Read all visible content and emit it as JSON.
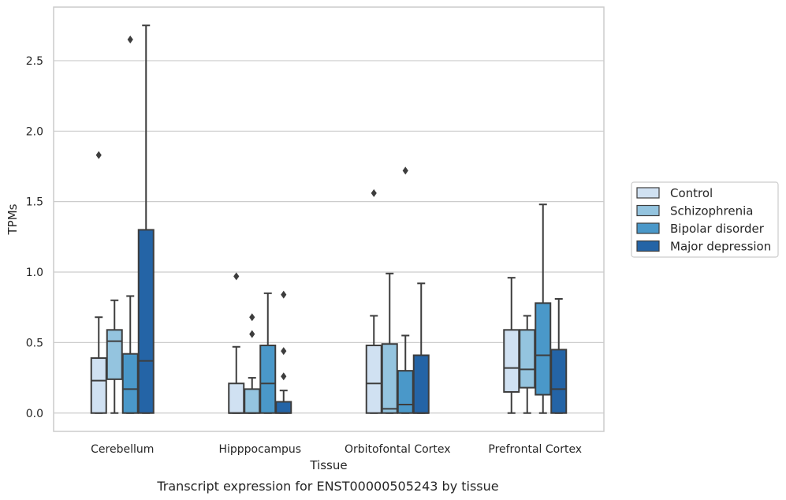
{
  "caption": "Transcript expression for ENST00000505243 by tissue",
  "colors": {
    "Control": "#d0e1f2",
    "Schizophrenia": "#94c4df",
    "Bipolar disorder": "#4a98c9",
    "Major depression": "#2464a6",
    "edge": "#3d3d3d",
    "grid": "#cccccc",
    "frame": "#cccccc"
  },
  "chart_data": {
    "type": "box",
    "title": "",
    "xlabel": "Tissue",
    "ylabel": "TPMs",
    "ylim": [
      -0.13,
      2.88
    ],
    "yticks": [
      0.0,
      0.5,
      1.0,
      1.5,
      2.0,
      2.5
    ],
    "ytick_labels": [
      "0.0",
      "0.5",
      "1.0",
      "1.5",
      "2.0",
      "2.5"
    ],
    "grid": true,
    "legend_position": "right",
    "categories": [
      "Cerebellum",
      "Hipppocampus",
      "Orbitofontal Cortex",
      "Prefrontal Cortex"
    ],
    "series": [
      {
        "name": "Control",
        "boxes": [
          {
            "whislo": 0.0,
            "q1": 0.0,
            "med": 0.23,
            "q3": 0.39,
            "whishi": 0.68,
            "fliers": [
              1.83
            ]
          },
          {
            "whislo": 0.0,
            "q1": 0.0,
            "med": 0.0,
            "q3": 0.21,
            "whishi": 0.47,
            "fliers": [
              0.97
            ]
          },
          {
            "whislo": 0.0,
            "q1": 0.0,
            "med": 0.21,
            "q3": 0.48,
            "whishi": 0.69,
            "fliers": [
              1.56
            ]
          },
          {
            "whislo": 0.0,
            "q1": 0.15,
            "med": 0.32,
            "q3": 0.59,
            "whishi": 0.96,
            "fliers": []
          }
        ]
      },
      {
        "name": "Schizophrenia",
        "boxes": [
          {
            "whislo": 0.0,
            "q1": 0.24,
            "med": 0.51,
            "q3": 0.59,
            "whishi": 0.8,
            "fliers": []
          },
          {
            "whislo": 0.0,
            "q1": 0.0,
            "med": 0.0,
            "q3": 0.17,
            "whishi": 0.25,
            "fliers": [
              0.56,
              0.68
            ]
          },
          {
            "whislo": 0.0,
            "q1": 0.0,
            "med": 0.03,
            "q3": 0.49,
            "whishi": 0.99,
            "fliers": []
          },
          {
            "whislo": 0.0,
            "q1": 0.18,
            "med": 0.31,
            "q3": 0.59,
            "whishi": 0.69,
            "fliers": []
          }
        ]
      },
      {
        "name": "Bipolar disorder",
        "boxes": [
          {
            "whislo": 0.0,
            "q1": 0.0,
            "med": 0.17,
            "q3": 0.42,
            "whishi": 0.83,
            "fliers": [
              2.65
            ]
          },
          {
            "whislo": 0.0,
            "q1": 0.0,
            "med": 0.21,
            "q3": 0.48,
            "whishi": 0.85,
            "fliers": []
          },
          {
            "whislo": 0.0,
            "q1": 0.0,
            "med": 0.06,
            "q3": 0.3,
            "whishi": 0.55,
            "fliers": [
              1.72
            ]
          },
          {
            "whislo": 0.0,
            "q1": 0.13,
            "med": 0.41,
            "q3": 0.78,
            "whishi": 1.48,
            "fliers": []
          }
        ]
      },
      {
        "name": "Major depression",
        "boxes": [
          {
            "whislo": 0.0,
            "q1": 0.0,
            "med": 0.37,
            "q3": 1.3,
            "whishi": 2.75,
            "fliers": []
          },
          {
            "whislo": 0.0,
            "q1": 0.0,
            "med": 0.0,
            "q3": 0.08,
            "whishi": 0.16,
            "fliers": [
              0.26,
              0.44,
              0.84
            ]
          },
          {
            "whislo": 0.0,
            "q1": 0.0,
            "med": 0.0,
            "q3": 0.41,
            "whishi": 0.92,
            "fliers": []
          },
          {
            "whislo": 0.0,
            "q1": 0.0,
            "med": 0.17,
            "q3": 0.45,
            "whishi": 0.81,
            "fliers": []
          }
        ]
      }
    ]
  }
}
